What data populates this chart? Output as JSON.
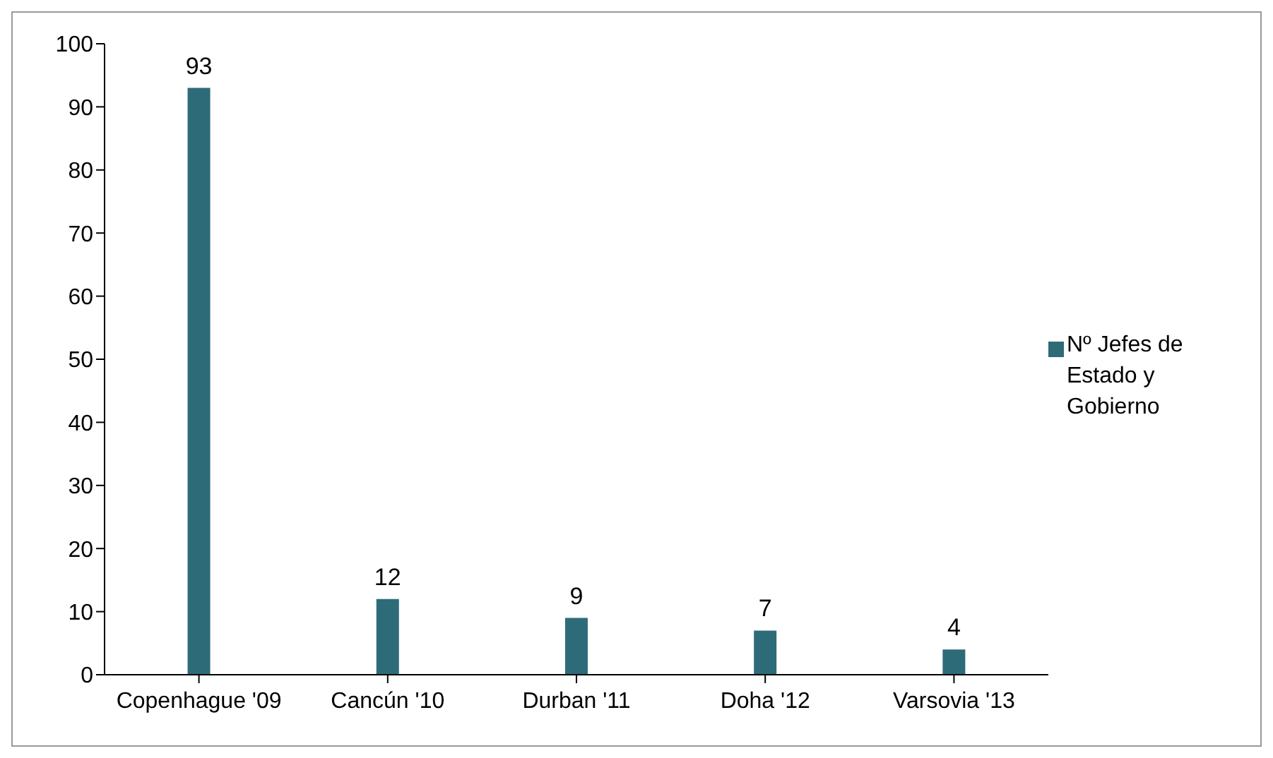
{
  "chart_data": {
    "type": "bar",
    "categories": [
      "Copenhague '09",
      "Cancún '10",
      "Durban '11",
      "Doha '12",
      "Varsovia '13"
    ],
    "series": [
      {
        "name": "Nº Jefes de Estado y Gobierno",
        "color": "#2e6b78",
        "values": [
          93,
          12,
          9,
          7,
          4
        ]
      }
    ],
    "ylim": [
      0,
      100
    ],
    "yticks": [
      0,
      10,
      20,
      30,
      40,
      50,
      60,
      70,
      80,
      90,
      100
    ],
    "grid": false,
    "legend": "right",
    "data_labels": true
  }
}
